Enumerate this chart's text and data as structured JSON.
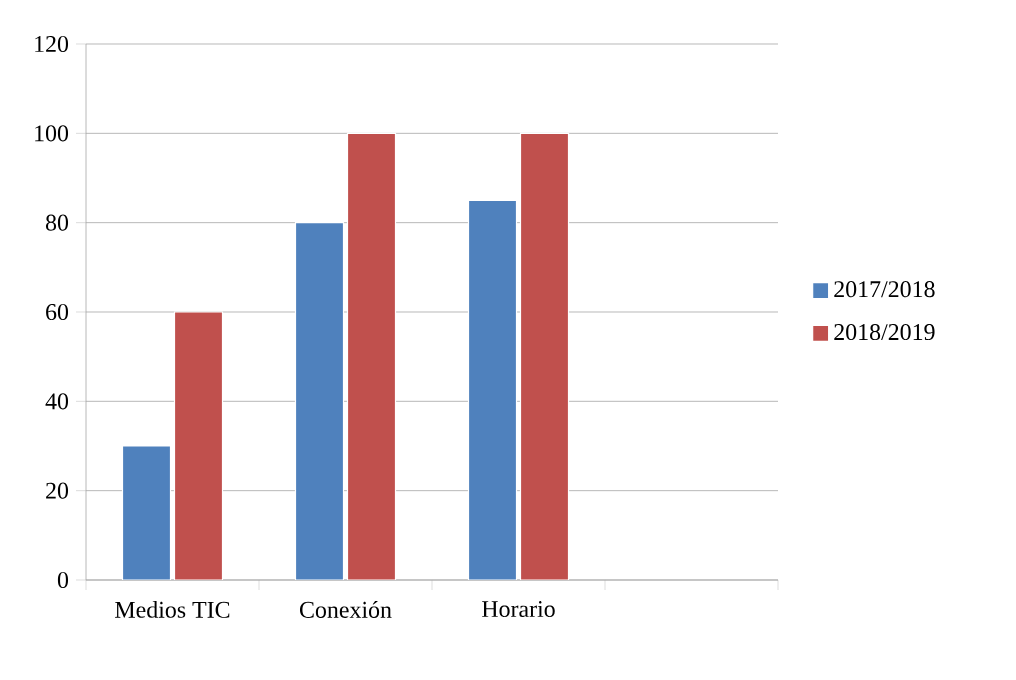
{
  "chart_data": {
    "type": "bar",
    "categories": [
      "Medios  TIC",
      "Conexión",
      "Horario",
      null
    ],
    "series": [
      {
        "name": "2017/2018",
        "color": "#4f81bd",
        "values": [
          30,
          80,
          85,
          null
        ]
      },
      {
        "name": "2018/2019",
        "color": "#c0504d",
        "values": [
          60,
          100,
          100,
          null
        ]
      }
    ],
    "ylim": [
      0,
      120
    ],
    "yticks": [
      0,
      20,
      40,
      60,
      80,
      100,
      120
    ],
    "grid": "y",
    "legend": "right"
  }
}
